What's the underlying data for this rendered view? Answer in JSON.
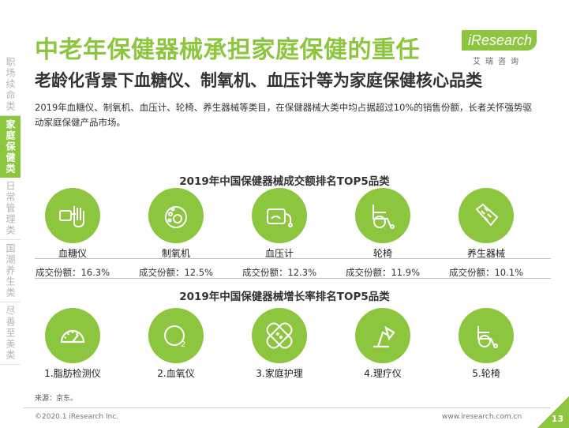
{
  "nav": {
    "items": [
      {
        "label": "职场续命类",
        "active": false
      },
      {
        "label": "家庭保健类",
        "active": true
      },
      {
        "label": "日常管理类",
        "active": false
      },
      {
        "label": "国潮养生类",
        "active": false
      },
      {
        "label": "尽善至美类",
        "active": false
      }
    ]
  },
  "header": {
    "title": "中老年保健器械承担家庭保健的重任",
    "subtitle": "老龄化背景下血糖仪、制氧机、血压计等为家庭保健核心品类",
    "description": "2019年血糖仪、制氧机、血压计、轮椅、养生器械等类目，在保健器械大类中均占据超过10%的销售份额，长者关怀强势驱动家庭保健产品市场。"
  },
  "logo": {
    "brand": "iResearch",
    "cn": "艾瑞咨询"
  },
  "top5_sales": {
    "title": "2019年中国保健器械成交额排名TOP5品类",
    "items": [
      {
        "label": "血糖仪",
        "share": "成交份额：16.3%",
        "icon": "glucose-meter-icon"
      },
      {
        "label": "制氧机",
        "share": "成交份额：12.5%",
        "icon": "oxygen-machine-icon"
      },
      {
        "label": "血压计",
        "share": "成交份额：12.3%",
        "icon": "blood-pressure-icon"
      },
      {
        "label": "轮椅",
        "share": "成交份额：11.9%",
        "icon": "wheelchair-icon"
      },
      {
        "label": "养生器械",
        "share": "成交份额：10.1%",
        "icon": "massage-glove-icon"
      }
    ]
  },
  "top5_growth": {
    "title": "2019年中国保健器械增长率排名TOP5品类",
    "items": [
      {
        "label": "1.脂肪检测仪",
        "icon": "gauge-icon"
      },
      {
        "label": "2.血氧仪",
        "icon": "oxygen-icon"
      },
      {
        "label": "3.家庭护理",
        "icon": "bandage-icon"
      },
      {
        "label": "4.理疗仪",
        "icon": "lamp-icon"
      },
      {
        "label": "5.轮椅",
        "icon": "wheelchair-icon"
      }
    ]
  },
  "footer": {
    "source": "来源：京东。",
    "copyright": "©2020.1 iResearch Inc.",
    "site": "www.iresearch.com.cn",
    "page": "13"
  },
  "colors": {
    "accent": "#8cc63f"
  }
}
